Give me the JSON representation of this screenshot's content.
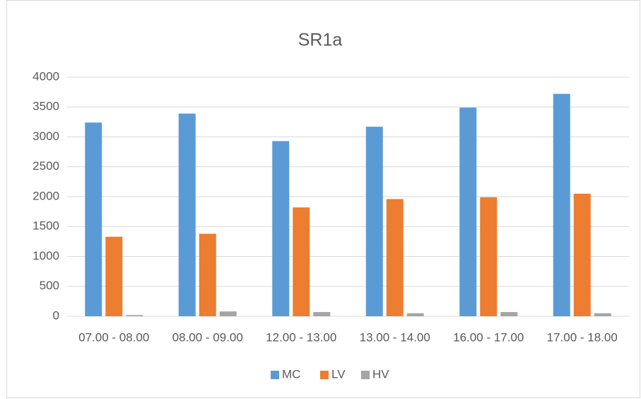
{
  "chart_data": {
    "type": "bar",
    "title": "SR1a",
    "categories": [
      "07.00 - 08.00",
      "08.00 - 09.00",
      "12.00 - 13.00",
      "13.00 - 14.00",
      "16.00 - 17.00",
      "17.00 - 18.00"
    ],
    "series": [
      {
        "name": "MC",
        "color": "#5b9bd5",
        "values": [
          3240,
          3390,
          2930,
          3170,
          3490,
          3720
        ]
      },
      {
        "name": "LV",
        "color": "#ed7d31",
        "values": [
          1330,
          1380,
          1820,
          1960,
          1990,
          2050
        ]
      },
      {
        "name": "HV",
        "color": "#a5a5a5",
        "values": [
          20,
          80,
          70,
          50,
          70,
          50
        ]
      }
    ],
    "ylim": [
      0,
      4000
    ],
    "yticks": [
      0,
      500,
      1000,
      1500,
      2000,
      2500,
      3000,
      3500,
      4000
    ],
    "grid": true,
    "legend": "bottom"
  }
}
